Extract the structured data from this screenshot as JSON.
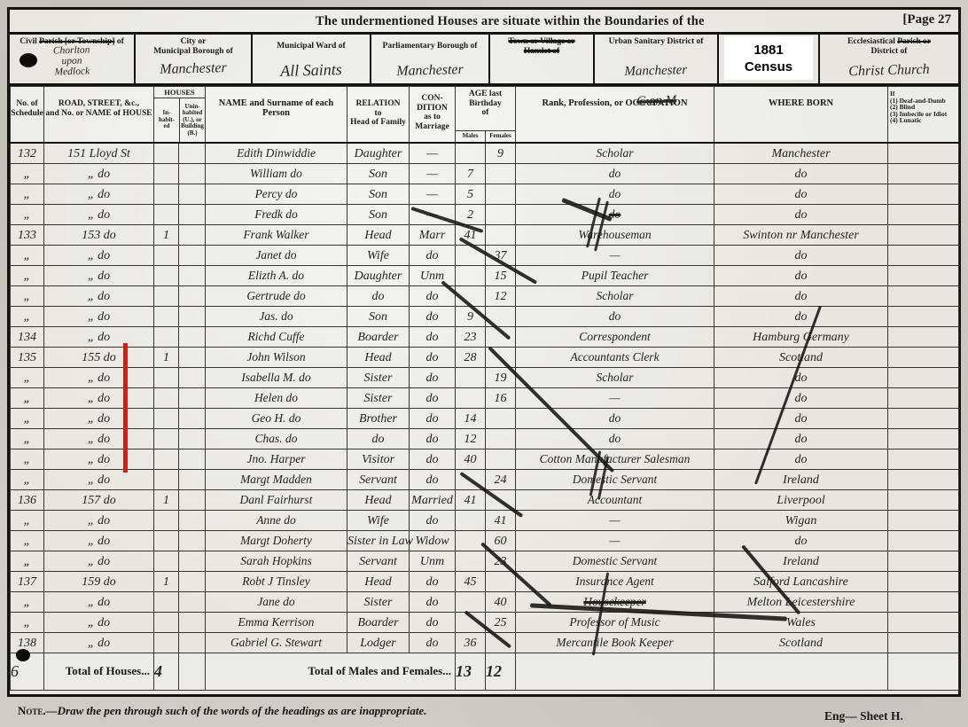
{
  "page": {
    "title": "The undermentioned Houses are situate within the Boundaries of the",
    "page_label": "[Page 27",
    "note_prefix": "Note.",
    "note_text": "—Draw the pen through such of the words of the headings as are inappropriate.",
    "sheet_label": "Eng— Sheet H."
  },
  "header_fields": {
    "civil_parish": {
      "pre": "Civil",
      "struck": "Parish [or Township]",
      "post": "of",
      "value": "Chorlton\nupon\nMedlock"
    },
    "municipal_borough": {
      "label": "City or\nMunicipal Borough of",
      "value": "Manchester"
    },
    "municipal_ward": {
      "label": "Municipal Ward of",
      "value": "All Saints"
    },
    "parliamentary_borough": {
      "label": "Parliamentary Borough of",
      "value": "Manchester"
    },
    "town_village": {
      "label": "Town or Village or\nHamlet of",
      "value": ""
    },
    "urban_sanitary": {
      "label": "Urban Sanitary District of",
      "value": "Manchester",
      "value2": "C on M"
    },
    "census_overlay": {
      "line1": "1881",
      "line2": "Census"
    },
    "ecclesiastical": {
      "pre": "Ecclesiastical",
      "struck": "Parish or",
      "post": "District of",
      "value": "Christ Church"
    }
  },
  "table_head": {
    "schedule": "No. of\nSchedule",
    "road": "ROAD, STREET, &c.,\nand No. or NAME of HOUSE",
    "houses": "HOUSES",
    "inhabited": "In-\nhabit-\ned",
    "uninhabited": "Unin-\nhabited\n(U.), or\nBuilding\n(B.)",
    "name": "NAME and Surname of each\nPerson",
    "relation": "RELATION\nto\nHead of Family",
    "condition": "CON-\nDITION\nas to\nMarriage",
    "age": "AGE last\nBirthday\nof",
    "males": "Males",
    "females": "Females",
    "occupation": "Rank, Profession, or OCCUPATION",
    "born": "WHERE BORN",
    "disability": "If\n(1) Deaf-and-Dumb\n(2) Blind\n(3) Imbecile or Idiot\n(4) Lunatic"
  },
  "rows": [
    {
      "c": [
        "132",
        "151  Lloyd St",
        "",
        "",
        "Edith Dinwiddie",
        "Daughter",
        "—",
        "",
        "9",
        "Scholar",
        "Manchester",
        ""
      ]
    },
    {
      "c": [
        "„",
        "„  do",
        "",
        "",
        "William  do",
        "Son",
        "—",
        "7",
        "",
        "do",
        "do",
        ""
      ]
    },
    {
      "c": [
        "„",
        "„  do",
        "",
        "",
        "Percy  do",
        "Son",
        "—",
        "5",
        "",
        "do",
        "do",
        ""
      ]
    },
    {
      "c": [
        "„",
        "„  do",
        "",
        "",
        "Fredk  do",
        "Son",
        "—",
        "2",
        "",
        "do",
        "do",
        ""
      ],
      "strike": [
        9
      ]
    },
    {
      "c": [
        "133",
        "153  do",
        "1",
        "",
        "Frank Walker",
        "Head",
        "Marr",
        "41",
        "",
        "Warehouseman",
        "Swinton nr Manchester",
        ""
      ]
    },
    {
      "c": [
        "„",
        "„  do",
        "",
        "",
        "Janet  do",
        "Wife",
        "do",
        "",
        "37",
        "—",
        "do",
        ""
      ]
    },
    {
      "c": [
        "„",
        "„  do",
        "",
        "",
        "Elizth A.  do",
        "Daughter",
        "Unm",
        "",
        "15",
        "Pupil Teacher",
        "do",
        ""
      ]
    },
    {
      "c": [
        "„",
        "„  do",
        "",
        "",
        "Gertrude  do",
        "do",
        "do",
        "",
        "12",
        "Scholar",
        "do",
        ""
      ]
    },
    {
      "c": [
        "„",
        "„  do",
        "",
        "",
        "Jas.  do",
        "Son",
        "do",
        "9",
        "",
        "do",
        "do",
        ""
      ]
    },
    {
      "c": [
        "134",
        "„  do",
        "",
        "",
        "Richd Cuffe",
        "Boarder",
        "do",
        "23",
        "",
        "Correspondent",
        "Hamburg Germany",
        ""
      ]
    },
    {
      "c": [
        "135",
        "155  do",
        "1",
        "",
        "John Wilson",
        "Head",
        "do",
        "28",
        "",
        "Accountants Clerk",
        "Scotland",
        ""
      ]
    },
    {
      "c": [
        "„",
        "„  do",
        "",
        "",
        "Isabella M.  do",
        "Sister",
        "do",
        "",
        "19",
        "Scholar",
        "do",
        ""
      ]
    },
    {
      "c": [
        "„",
        "„  do",
        "",
        "",
        "Helen  do",
        "Sister",
        "do",
        "",
        "16",
        "—",
        "do",
        ""
      ]
    },
    {
      "c": [
        "„",
        "„  do",
        "",
        "",
        "Geo H.  do",
        "Brother",
        "do",
        "14",
        "",
        "do",
        "do",
        ""
      ]
    },
    {
      "c": [
        "„",
        "„  do",
        "",
        "",
        "Chas.  do",
        "do",
        "do",
        "12",
        "",
        "do",
        "do",
        ""
      ]
    },
    {
      "c": [
        "„",
        "„  do",
        "",
        "",
        "Jno. Harper",
        "Visitor",
        "do",
        "40",
        "",
        "Cotton Manufacturer Salesman",
        "do",
        ""
      ]
    },
    {
      "c": [
        "„",
        "„  do",
        "",
        "",
        "Margt Madden",
        "Servant",
        "do",
        "",
        "24",
        "Domestic Servant",
        "Ireland",
        ""
      ]
    },
    {
      "c": [
        "136",
        "157  do",
        "1",
        "",
        "Danl Fairhurst",
        "Head",
        "Married",
        "41",
        "",
        "Accountant",
        "Liverpool",
        ""
      ]
    },
    {
      "c": [
        "„",
        "„  do",
        "",
        "",
        "Anne  do",
        "Wife",
        "do",
        "",
        "41",
        "—",
        "Wigan",
        ""
      ]
    },
    {
      "c": [
        "„",
        "„  do",
        "",
        "",
        "Margt Doherty",
        "Sister in Law",
        "Widow",
        "",
        "60",
        "—",
        "do",
        ""
      ]
    },
    {
      "c": [
        "„",
        "„  do",
        "",
        "",
        "Sarah Hopkins",
        "Servant",
        "Unm",
        "",
        "23",
        "Domestic Servant",
        "Ireland",
        ""
      ]
    },
    {
      "c": [
        "137",
        "159  do",
        "1",
        "",
        "Robt J Tinsley",
        "Head",
        "do",
        "45",
        "",
        "Insurance Agent",
        "Salford Lancashire",
        ""
      ]
    },
    {
      "c": [
        "„",
        "„  do",
        "",
        "",
        "Jane  do",
        "Sister",
        "do",
        "",
        "40",
        "Housekeeper",
        "Melton Leicestershire",
        ""
      ],
      "strike": [
        9
      ]
    },
    {
      "c": [
        "„",
        "„  do",
        "",
        "",
        "Emma Kerrison",
        "Boarder",
        "do",
        "",
        "25",
        "Professor of Music",
        "Wales",
        ""
      ]
    },
    {
      "c": [
        "138",
        "„  do",
        "",
        "",
        "Gabriel G. Stewart",
        "Lodger",
        "do",
        "36",
        "",
        "Mercantile Book Keeper",
        "Scotland",
        ""
      ]
    }
  ],
  "totals": {
    "schedule_mark": "6",
    "houses_label": "Total of Houses...",
    "houses_value": "4",
    "males_females_label": "Total of Males and Females...",
    "males_value": "13",
    "females_value": "12"
  }
}
